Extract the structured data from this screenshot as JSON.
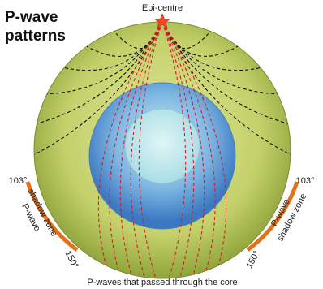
{
  "header": {
    "title_lines": [
      "P-wave",
      "patterns"
    ]
  },
  "epicentre": "Epi-centre",
  "left_zone": {
    "start": "103°",
    "label_lines": [
      "P-wave",
      "shadow zone"
    ],
    "end": "150°"
  },
  "right_zone": {
    "start": "103°",
    "label_lines": [
      "P-wave",
      "shadow zone"
    ],
    "end": "150°"
  },
  "caption": "P-waves that passed through the core"
}
